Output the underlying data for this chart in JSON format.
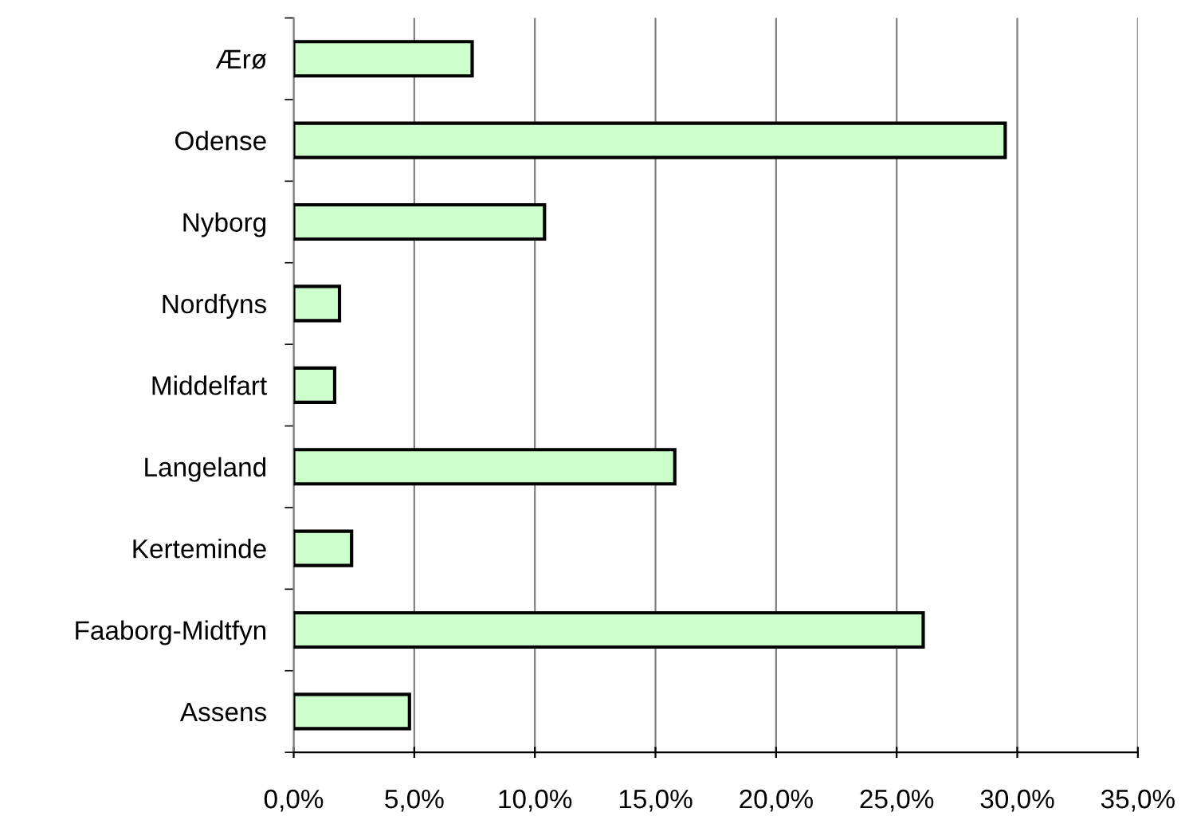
{
  "chart_data": {
    "type": "bar",
    "orientation": "horizontal",
    "categories": [
      "Ærø",
      "Odense",
      "Nyborg",
      "Nordfyns",
      "Middelfart",
      "Langeland",
      "Kerteminde",
      "Faaborg-Midtfyn",
      "Assens"
    ],
    "values": [
      7.4,
      29.5,
      10.4,
      1.9,
      1.7,
      15.8,
      2.4,
      26.1,
      4.8
    ],
    "color": "#ccffcc",
    "xlim": [
      0,
      35
    ],
    "xticks": [
      {
        "value": 0,
        "label": "0,0%"
      },
      {
        "value": 5,
        "label": "5,0%"
      },
      {
        "value": 10,
        "label": "10,0%"
      },
      {
        "value": 15,
        "label": "15,0%"
      },
      {
        "value": 20,
        "label": "20,0%"
      },
      {
        "value": 25,
        "label": "25,0%"
      },
      {
        "value": 30,
        "label": "30,0%"
      },
      {
        "value": 35,
        "label": "35,0%"
      }
    ],
    "grid": "x"
  }
}
